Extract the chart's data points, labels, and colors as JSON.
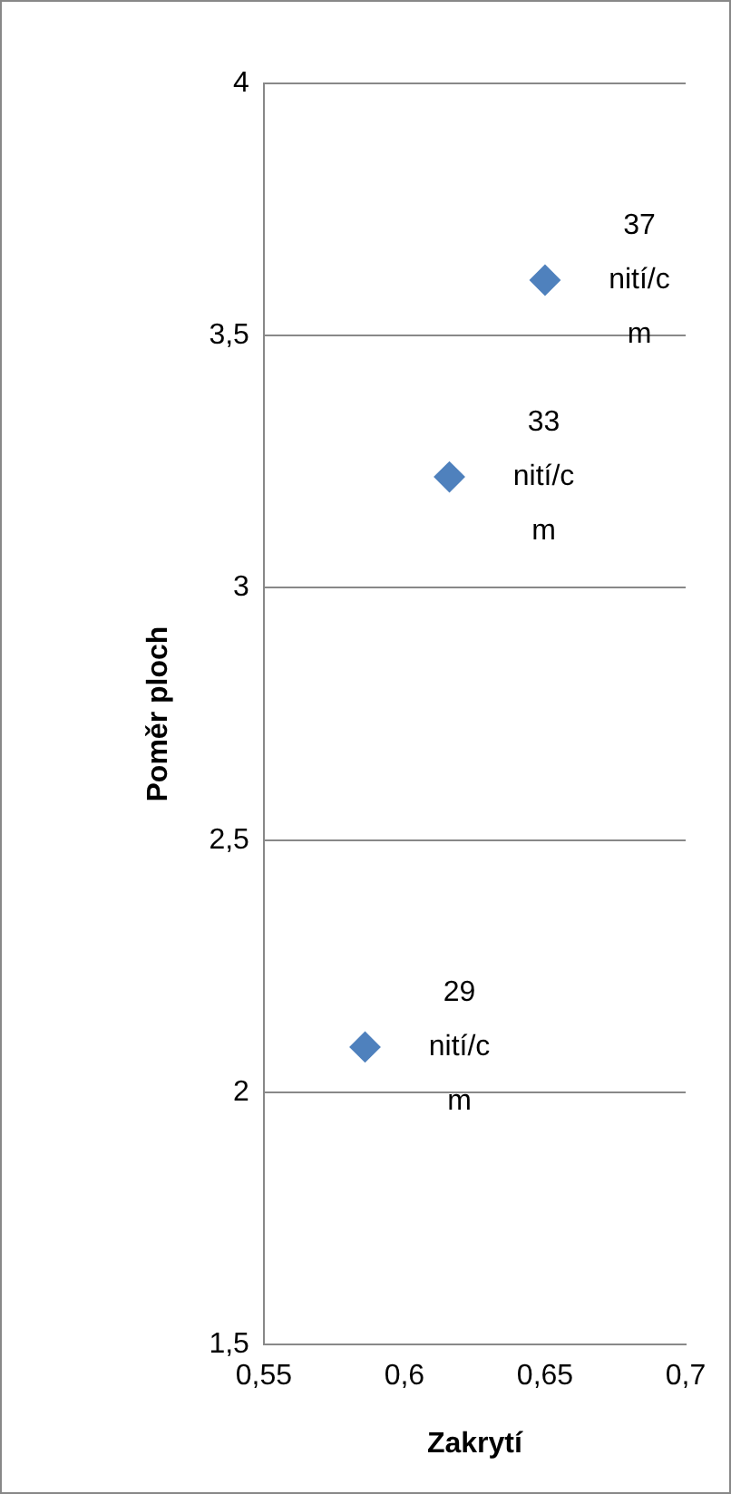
{
  "chart_data": {
    "type": "scatter",
    "xlabel": "Zakrytí",
    "ylabel": "Poměr ploch",
    "x": [
      0.586,
      0.616,
      0.65
    ],
    "series": [
      {
        "color": "#4f81bd",
        "values": [
          2.09,
          3.22,
          3.61
        ]
      }
    ],
    "xlim": [
      0.55,
      0.7
    ],
    "xticks": [
      {
        "value": 0.55,
        "label": "0,55"
      },
      {
        "value": 0.6,
        "label": "0,6"
      },
      {
        "value": 0.65,
        "label": "0,65"
      },
      {
        "value": 0.7,
        "label": "0,7"
      }
    ],
    "ylim": [
      1.5,
      4
    ],
    "yticks": [
      {
        "value": 1.5,
        "label": "1,5"
      },
      {
        "value": 2,
        "label": "2"
      },
      {
        "value": 2.5,
        "label": "2,5"
      },
      {
        "value": 3,
        "label": "3"
      },
      {
        "value": 3.5,
        "label": "3,5"
      },
      {
        "value": 4,
        "label": "4"
      }
    ],
    "grid": "y",
    "legend": false,
    "marker": "diamond",
    "annotations": [
      {
        "text": "29 nití/cm",
        "x": 0.586,
        "y": 2.09
      },
      {
        "text": "33 nití/cm",
        "x": 0.616,
        "y": 3.22
      },
      {
        "text": "37 nití/cm",
        "x": 0.65,
        "y": 3.61
      }
    ]
  }
}
